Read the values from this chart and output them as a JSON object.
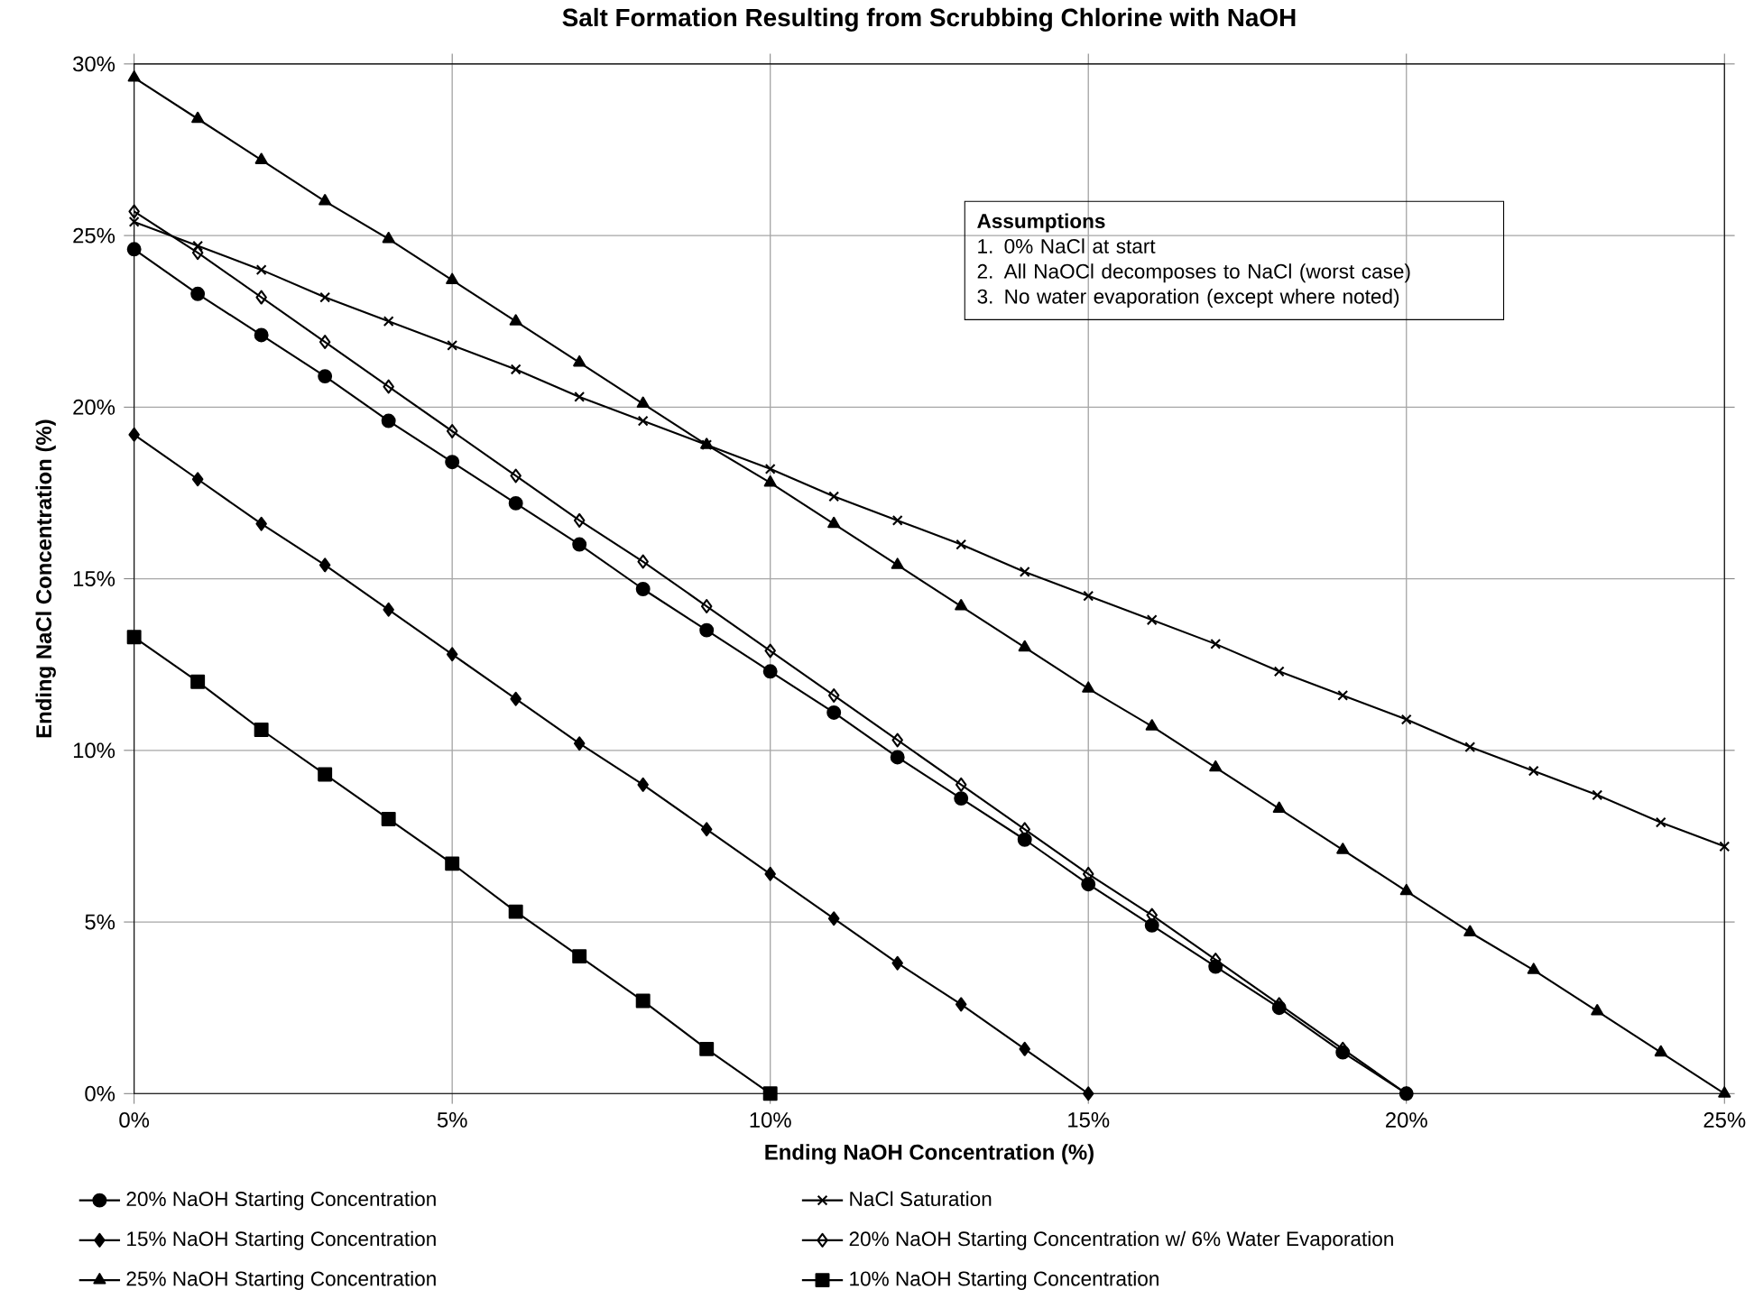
{
  "chart_data": {
    "type": "line",
    "title": "Salt Formation Resulting from Scrubbing Chlorine with NaOH",
    "xlabel": "Ending NaOH Concentration (%)",
    "ylabel": "Ending NaCl Concentration (%)",
    "annotations": [
      "Assumptions",
      "1.  0% NaCl at start",
      "2.  All NaOCl decomposes to NaCl (worst case)",
      "3.  No water evaporation (except where noted)"
    ],
    "xlim": [
      0,
      25
    ],
    "ylim": [
      0,
      30
    ],
    "xticks": [
      {
        "value": 0,
        "label": "0%"
      },
      {
        "value": 5,
        "label": "5%"
      },
      {
        "value": 10,
        "label": "10%"
      },
      {
        "value": 15,
        "label": "15%"
      },
      {
        "value": 20,
        "label": "20%"
      },
      {
        "value": 25,
        "label": "25%"
      }
    ],
    "yticks": [
      {
        "value": 0,
        "label": "0%"
      },
      {
        "value": 5,
        "label": "5%"
      },
      {
        "value": 10,
        "label": "10%"
      },
      {
        "value": 15,
        "label": "15%"
      },
      {
        "value": 20,
        "label": "20%"
      },
      {
        "value": 25,
        "label": "25%"
      },
      {
        "value": 30,
        "label": "30%"
      }
    ],
    "grid": true,
    "legend": "bottom",
    "line_style": "solid",
    "series": [
      {
        "name": "20% NaOH Starting Concentration",
        "color": "#000000",
        "marker": "circle",
        "x": [
          0,
          1,
          2,
          3,
          4,
          5,
          6,
          7,
          8,
          9,
          10,
          11,
          12,
          13,
          14,
          15,
          16,
          17,
          18,
          19,
          20
        ],
        "values": [
          24.6,
          23.3,
          22.1,
          20.9,
          19.6,
          18.4,
          17.2,
          16.0,
          14.7,
          13.5,
          12.3,
          11.1,
          9.8,
          8.6,
          7.4,
          6.1,
          4.9,
          3.7,
          2.5,
          1.2,
          0
        ]
      },
      {
        "name": "NaCl Saturation",
        "color": "#000000",
        "marker": "cross",
        "x": [
          0,
          1,
          2,
          3,
          4,
          5,
          6,
          7,
          8,
          9,
          10,
          11,
          12,
          13,
          14,
          15,
          16,
          17,
          18,
          19,
          20,
          21,
          22,
          23,
          24,
          25
        ],
        "values": [
          25.4,
          24.7,
          24.0,
          23.2,
          22.5,
          21.8,
          21.1,
          20.3,
          19.6,
          18.9,
          18.2,
          17.4,
          16.7,
          16.0,
          15.2,
          14.5,
          13.8,
          13.1,
          12.3,
          11.6,
          10.9,
          10.1,
          9.4,
          8.7,
          7.9,
          7.2
        ]
      },
      {
        "name": "15% NaOH Starting Concentration",
        "color": "#000000",
        "marker": "diamond",
        "x": [
          0,
          1,
          2,
          3,
          4,
          5,
          6,
          7,
          8,
          9,
          10,
          11,
          12,
          13,
          14,
          15
        ],
        "values": [
          19.2,
          17.9,
          16.6,
          15.4,
          14.1,
          12.8,
          11.5,
          10.2,
          9.0,
          7.7,
          6.4,
          5.1,
          3.8,
          2.6,
          1.3,
          0
        ]
      },
      {
        "name": "20% NaOH Starting Concentration w/ 6% Water Evaporation",
        "color": "#000000",
        "marker": "diamond",
        "x": [
          0,
          1,
          2,
          3,
          4,
          5,
          6,
          7,
          8,
          9,
          10,
          11,
          12,
          13,
          14,
          15,
          16,
          17,
          18,
          19,
          20
        ],
        "values": [
          25.7,
          24.5,
          23.2,
          21.9,
          20.6,
          19.3,
          18.0,
          16.7,
          15.5,
          14.2,
          12.9,
          11.6,
          10.3,
          9.0,
          7.7,
          6.4,
          5.2,
          3.9,
          2.6,
          1.3,
          0
        ]
      },
      {
        "name": "25% NaOH Starting Concentration",
        "color": "#000000",
        "marker": "triangle",
        "x": [
          0,
          1,
          2,
          3,
          4,
          5,
          6,
          7,
          8,
          9,
          10,
          11,
          12,
          13,
          14,
          15,
          16,
          17,
          18,
          19,
          20,
          21,
          22,
          23,
          24,
          25
        ],
        "values": [
          29.6,
          28.4,
          27.2,
          26.0,
          24.9,
          23.7,
          22.5,
          21.3,
          20.1,
          18.9,
          17.8,
          16.6,
          15.4,
          14.2,
          13.0,
          11.8,
          10.7,
          9.5,
          8.3,
          7.1,
          5.9,
          4.7,
          3.6,
          2.4,
          1.2,
          0
        ]
      },
      {
        "name": "10% NaOH Starting Concentration",
        "color": "#000000",
        "marker": "square",
        "x": [
          0,
          1,
          2,
          3,
          4,
          5,
          6,
          7,
          8,
          9,
          10
        ],
        "values": [
          13.3,
          12.0,
          10.6,
          9.3,
          8.0,
          6.7,
          5.3,
          4.0,
          2.7,
          1.3,
          0
        ]
      }
    ]
  }
}
